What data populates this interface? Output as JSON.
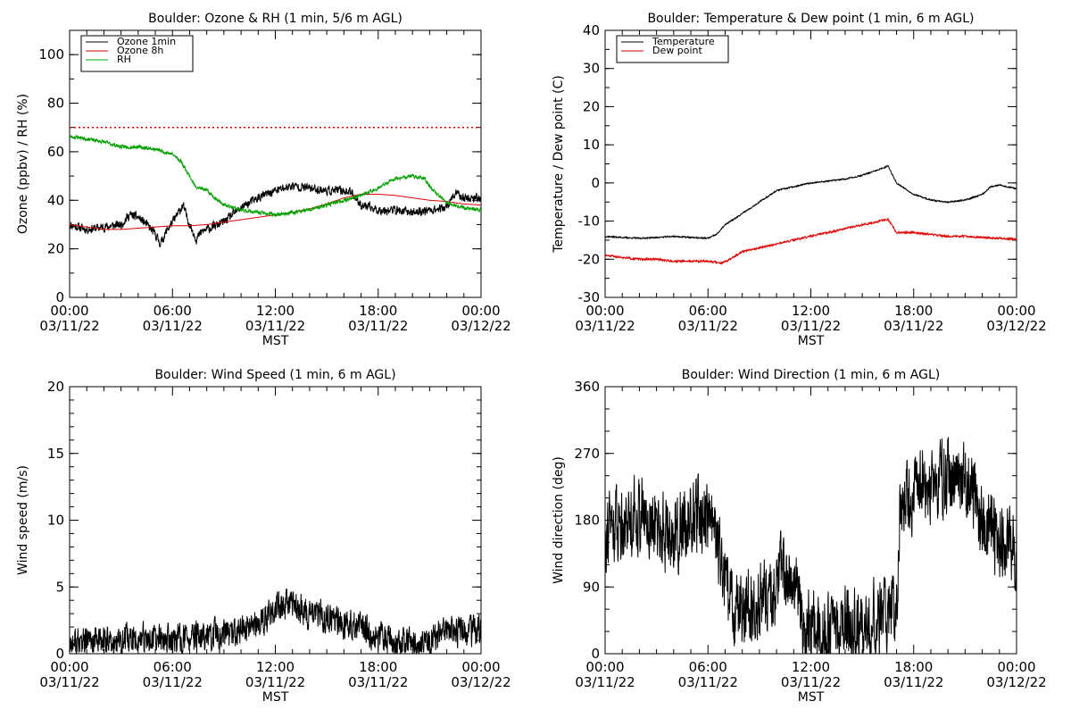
{
  "chart_data": [
    {
      "type": "line",
      "title": "Boulder: Ozone & RH (1 min, 5/6 m AGL)",
      "xlabel": "MST",
      "ylabel": "Ozone (ppbv) / RH (%)",
      "x_ticks": [
        {
          "time": "00:00",
          "date": "03/11/22"
        },
        {
          "time": "06:00",
          "date": "03/11/22"
        },
        {
          "time": "12:00",
          "date": "03/11/22"
        },
        {
          "time": "18:00",
          "date": "03/11/22"
        },
        {
          "time": "00:00",
          "date": "03/12/22"
        }
      ],
      "xlim_hours": [
        0,
        24
      ],
      "ylim": [
        0,
        110
      ],
      "y_ticks": [
        0,
        20,
        40,
        60,
        80,
        100
      ],
      "y_minor_step": 10,
      "legend": "top-left",
      "reference_line": {
        "y": 70,
        "color": "#e00000",
        "style": "dotted"
      },
      "series": [
        {
          "name": "Ozone 1min",
          "color": "#000000",
          "noise": 2.5,
          "seed": 11,
          "x_hours": [
            0,
            1,
            2,
            3,
            3.5,
            4,
            4.5,
            5,
            5.3,
            5.7,
            6.2,
            6.6,
            7.0,
            7.4,
            7.7,
            8,
            9,
            10,
            11,
            12,
            13,
            14,
            15,
            16,
            16.5,
            17,
            18,
            19,
            20,
            21,
            22,
            22.5,
            23,
            24
          ],
          "y": [
            30,
            28,
            29,
            30,
            34,
            33,
            30,
            26,
            22,
            28,
            33,
            38,
            30,
            24,
            27,
            28,
            31,
            37,
            41,
            44,
            46,
            45,
            44,
            44,
            43,
            38,
            36,
            36,
            35,
            36,
            37,
            43,
            41,
            41
          ]
        },
        {
          "name": "Ozone 8h",
          "color": "#e00000",
          "noise": 0,
          "seed": 0,
          "x_hours": [
            0,
            1,
            2,
            3,
            4,
            5,
            6,
            7,
            8,
            9,
            10,
            11,
            12,
            13,
            14,
            15,
            16,
            17,
            18,
            19,
            20,
            21,
            22,
            23,
            24
          ],
          "y": [
            30,
            29,
            28,
            28,
            28.5,
            29,
            29.5,
            29.5,
            30,
            31,
            32,
            33,
            34,
            35,
            36.5,
            38.5,
            41,
            42.5,
            42.5,
            42,
            41,
            40,
            39.5,
            38.5,
            38
          ]
        },
        {
          "name": "RH",
          "color": "#00a000",
          "noise": 1,
          "seed": 23,
          "x_hours": [
            0,
            0.5,
            2,
            3,
            4,
            5,
            6,
            6.5,
            7,
            7.3,
            7.6,
            8,
            8.5,
            9,
            10,
            11,
            12,
            13,
            14,
            15,
            16,
            17,
            18,
            19,
            20,
            20.7,
            21.2,
            22,
            23,
            24
          ],
          "y": [
            66,
            66,
            64,
            62,
            62,
            61,
            59,
            56,
            50,
            46,
            45,
            44,
            41,
            38,
            36,
            35,
            34,
            35,
            36,
            38,
            40,
            42,
            45,
            49,
            50,
            49,
            44,
            39,
            37,
            36
          ]
        }
      ]
    },
    {
      "type": "line",
      "title": "Boulder: Temperature & Dew point (1 min, 6 m AGL)",
      "xlabel": "MST",
      "ylabel": "Temperature / Dew point (C)",
      "x_ticks": [
        {
          "time": "00:00",
          "date": "03/11/22"
        },
        {
          "time": "06:00",
          "date": "03/11/22"
        },
        {
          "time": "12:00",
          "date": "03/11/22"
        },
        {
          "time": "18:00",
          "date": "03/11/22"
        },
        {
          "time": "00:00",
          "date": "03/12/22"
        }
      ],
      "xlim_hours": [
        0,
        24
      ],
      "ylim": [
        -30,
        40
      ],
      "y_ticks": [
        -30,
        -20,
        -10,
        0,
        10,
        20,
        30,
        40
      ],
      "y_minor_step": 5,
      "legend": "top-left",
      "series": [
        {
          "name": "Temperature",
          "color": "#000000",
          "noise": 0.25,
          "seed": 37,
          "x_hours": [
            0,
            1,
            2,
            3,
            4,
            5,
            6,
            6.5,
            7,
            8,
            9,
            10,
            11,
            12,
            13,
            14,
            15,
            16,
            16.5,
            17,
            18,
            19,
            20,
            21,
            22,
            22.5,
            23,
            23.5,
            24
          ],
          "y": [
            -14,
            -14.3,
            -14.5,
            -14.3,
            -14,
            -14.3,
            -14.5,
            -13.5,
            -11,
            -8,
            -5,
            -2,
            -1,
            0,
            0.5,
            1,
            2,
            3.5,
            4.5,
            0,
            -3,
            -4.5,
            -5,
            -4.5,
            -3,
            -1,
            -0.5,
            -1,
            -1.5
          ]
        },
        {
          "name": "Dew point",
          "color": "#e00000",
          "noise": 0.35,
          "seed": 51,
          "x_hours": [
            0,
            1,
            2,
            3,
            4,
            5,
            6,
            6.8,
            7.3,
            8,
            9,
            10,
            11,
            12,
            13,
            14,
            15,
            16,
            16.5,
            17,
            18,
            19,
            20,
            21,
            22,
            23,
            24
          ],
          "y": [
            -19,
            -19.5,
            -20,
            -20,
            -20.5,
            -20.5,
            -20.5,
            -21,
            -20,
            -18,
            -17,
            -16,
            -15,
            -14,
            -13,
            -12,
            -11,
            -10,
            -9.5,
            -13,
            -13,
            -13.5,
            -14,
            -14,
            -14.3,
            -14.5,
            -14.8
          ]
        }
      ]
    },
    {
      "type": "line",
      "title": "Boulder: Wind Speed (1 min, 6 m AGL)",
      "xlabel": "MST",
      "ylabel": "Wind speed (m/s)",
      "x_ticks": [
        {
          "time": "00:00",
          "date": "03/11/22"
        },
        {
          "time": "06:00",
          "date": "03/11/22"
        },
        {
          "time": "12:00",
          "date": "03/11/22"
        },
        {
          "time": "18:00",
          "date": "03/11/22"
        },
        {
          "time": "00:00",
          "date": "03/12/22"
        }
      ],
      "xlim_hours": [
        0,
        24
      ],
      "ylim": [
        0,
        20
      ],
      "y_ticks": [
        0,
        5,
        10,
        15,
        20
      ],
      "y_minor_step": 1,
      "series": [
        {
          "name": "",
          "color": "#000000",
          "noise": 1.6,
          "seed": 77,
          "clip_min": 0,
          "x_hours": [
            0,
            2,
            4,
            6,
            8,
            10,
            11,
            12,
            13,
            14,
            15,
            16,
            17,
            18,
            19,
            20,
            21,
            22,
            23,
            24
          ],
          "y": [
            0.8,
            0.9,
            1.0,
            1.0,
            1.2,
            1.6,
            2.2,
            3.5,
            3.5,
            3.0,
            2.6,
            2.3,
            1.8,
            1.4,
            1.0,
            0.8,
            1.0,
            1.8,
            1.6,
            1.6
          ]
        }
      ]
    },
    {
      "type": "line",
      "title": "Boulder: Wind Direction (1 min, 6 m AGL)",
      "xlabel": "MST",
      "ylabel": "Wind direction (deg)",
      "x_ticks": [
        {
          "time": "00:00",
          "date": "03/11/22"
        },
        {
          "time": "06:00",
          "date": "03/11/22"
        },
        {
          "time": "12:00",
          "date": "03/11/22"
        },
        {
          "time": "18:00",
          "date": "03/11/22"
        },
        {
          "time": "00:00",
          "date": "03/12/22"
        }
      ],
      "xlim_hours": [
        0,
        24
      ],
      "ylim": [
        0,
        360
      ],
      "y_ticks": [
        0,
        90,
        180,
        270,
        360
      ],
      "y_minor_step": 30,
      "series": [
        {
          "name": "",
          "color": "#000000",
          "noise": 70,
          "seed": 91,
          "clip_min": 0,
          "clip_max": 360,
          "x_hours": [
            0,
            1,
            2,
            3,
            4,
            5,
            6,
            6.5,
            7,
            7.5,
            8,
            9,
            10,
            10.5,
            11,
            11.5,
            12,
            13,
            14,
            15,
            16,
            17,
            17.2,
            18,
            19,
            20,
            21,
            22,
            23,
            24
          ],
          "y": [
            170,
            180,
            190,
            170,
            160,
            180,
            190,
            150,
            90,
            60,
            60,
            70,
            90,
            120,
            100,
            40,
            30,
            30,
            40,
            30,
            50,
            60,
            200,
            220,
            230,
            240,
            230,
            180,
            150,
            140
          ]
        }
      ]
    }
  ]
}
